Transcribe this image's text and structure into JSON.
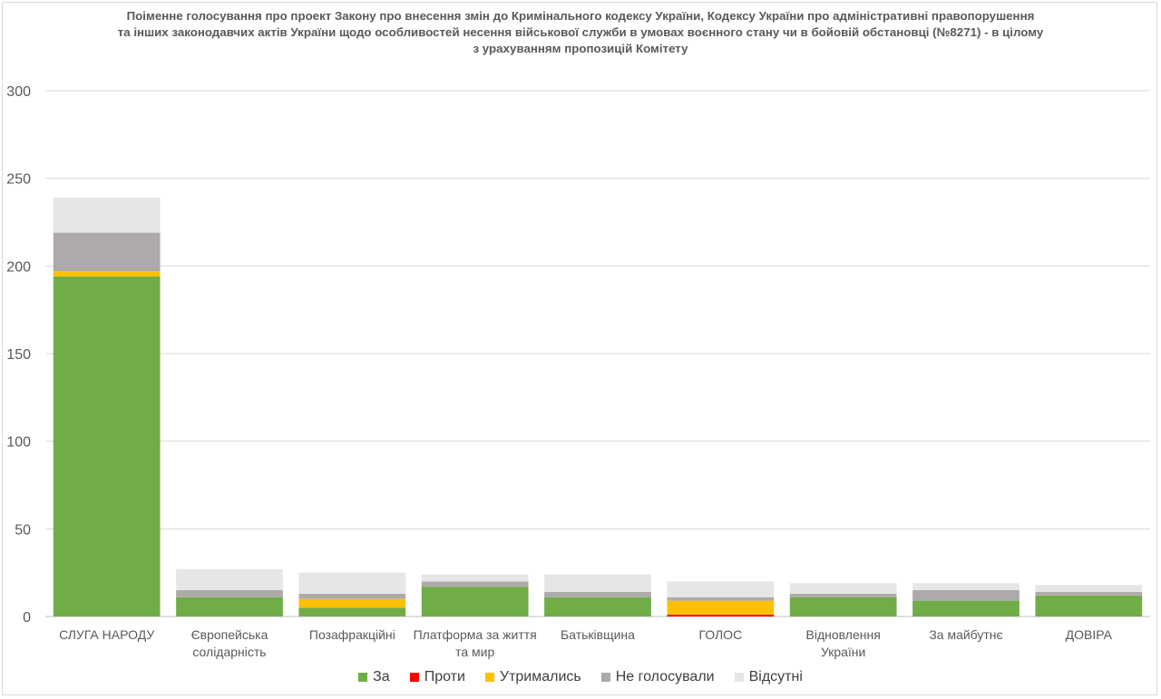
{
  "chart_data": {
    "type": "bar",
    "stacked": true,
    "title_lines": [
      "Поіменне голосування про проект Закону про внесення змін до Кримінального кодексу України, Кодексу України про адміністративні правопорушення",
      "та інших законодавчих актів України щодо особливостей несення військової служби в умовах воєнного стану чи в бойовій обстановці (№8271) - в цілому",
      "з урахуванням пропозицій Комітету"
    ],
    "categories": [
      [
        "СЛУГА НАРОДУ"
      ],
      [
        "Європейська",
        "солідарність"
      ],
      [
        "Позафракційні"
      ],
      [
        "Платформа за життя",
        "та мир"
      ],
      [
        "Батьківщина"
      ],
      [
        "ГОЛОС"
      ],
      [
        "Відновлення",
        "України"
      ],
      [
        "За майбутнє"
      ],
      [
        "ДОВІРА"
      ]
    ],
    "series": [
      {
        "name": "За",
        "color": "#70ad47",
        "values": [
          194,
          11,
          5,
          17,
          11,
          0,
          11,
          9,
          12
        ]
      },
      {
        "name": "Проти",
        "color": "#ff0000",
        "values": [
          0,
          0,
          0,
          0,
          0,
          1,
          0,
          0,
          0
        ]
      },
      {
        "name": "Утрималися",
        "color": "#ffc000",
        "values": [
          3,
          0,
          5,
          0,
          0,
          8,
          0,
          0,
          0
        ]
      },
      {
        "name": "Не голосували",
        "color": "#aeaaaa",
        "values": [
          22,
          4,
          3,
          3,
          3,
          2,
          2,
          6,
          2
        ]
      },
      {
        "name": "Відсутні",
        "color": "#e6e6e6",
        "values": [
          20,
          12,
          12,
          4,
          10,
          9,
          6,
          4,
          4
        ]
      }
    ],
    "legend_labels": [
      "За",
      "Проти",
      "Утримались",
      "Не голосували",
      "Відсутні"
    ],
    "ylim": [
      0,
      300
    ],
    "yticks": [
      "0",
      "50",
      "100",
      "150",
      "200",
      "250",
      "300"
    ],
    "grid": true,
    "legend_position": "bottom"
  }
}
